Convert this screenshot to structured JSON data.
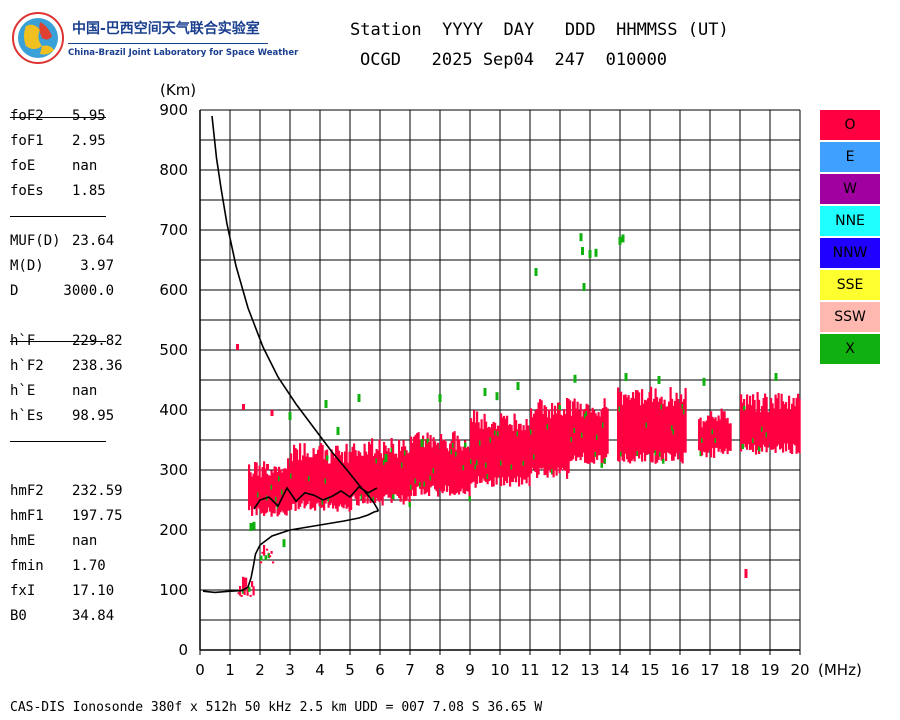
{
  "logo": {
    "cn": "中国-巴西空间天气联合实验室",
    "en": "China-Brazil Joint Laboratory for Space Weather"
  },
  "header": {
    "line1": "Station  YYYY  DAY   DDD  HHMMSS (UT)",
    "line2": "OCGD   2025 Sep04  247  010000"
  },
  "params": [
    {
      "name": "foF2",
      "value": "5.95"
    },
    {
      "name": "foF1",
      "value": "2.95"
    },
    {
      "name": "foE",
      "value": "nan"
    },
    {
      "name": "foEs",
      "value": "1.85"
    },
    {
      "name": "MUF(D)",
      "value": "23.64"
    },
    {
      "name": "M(D)",
      "value": "3.97"
    },
    {
      "name": "D",
      "value": "3000.0"
    },
    {
      "name": "h`F",
      "value": "229.82"
    },
    {
      "name": "h`F2",
      "value": "238.36"
    },
    {
      "name": "h`E",
      "value": "nan"
    },
    {
      "name": "h`Es",
      "value": "98.95"
    },
    {
      "name": "hmF2",
      "value": "232.59"
    },
    {
      "name": "hmF1",
      "value": "197.75"
    },
    {
      "name": "hmE",
      "value": "nan"
    },
    {
      "name": "fmin",
      "value": "1.70"
    },
    {
      "name": "fxI",
      "value": "17.10"
    },
    {
      "name": "B0",
      "value": "34.84"
    }
  ],
  "legend": [
    {
      "label": "O",
      "color": "#ff0040"
    },
    {
      "label": "E",
      "color": "#40a0ff"
    },
    {
      "label": "W",
      "color": "#a000a0"
    },
    {
      "label": "NNE",
      "color": "#20ffff"
    },
    {
      "label": "NNW",
      "color": "#2000ff"
    },
    {
      "label": "SSE",
      "color": "#ffff30"
    },
    {
      "label": "SSW",
      "color": "#ffb8b0"
    },
    {
      "label": "X",
      "color": "#10b010"
    }
  ],
  "footer": "CAS-DIS Ionosonde 380f x 512h 50 kHz 2.5 km UDD = 007 7.08 S 36.65 W",
  "chart_data": {
    "type": "scatter",
    "xlabel": "(MHz)",
    "ylabel": "(Km)",
    "xlim": [
      0,
      20
    ],
    "ylim": [
      0,
      900
    ],
    "xticks": [
      "0",
      "1",
      "2",
      "3",
      "4",
      "5",
      "6",
      "7",
      "8",
      "9",
      "10",
      "11",
      "12",
      "13",
      "14",
      "15",
      "16",
      "17",
      "18",
      "19",
      "20"
    ],
    "yticks": [
      "0",
      "100",
      "200",
      "300",
      "400",
      "500",
      "600",
      "700",
      "800",
      "900"
    ],
    "grid": true,
    "profile_curve": {
      "x": [
        0.4,
        0.55,
        0.7,
        0.9,
        1.2,
        1.6,
        2.1,
        2.6,
        3.2,
        3.8,
        4.4,
        4.9,
        5.3,
        5.6,
        5.8,
        5.95
      ],
      "y": [
        890,
        820,
        770,
        710,
        640,
        570,
        505,
        455,
        410,
        370,
        330,
        300,
        275,
        258,
        245,
        232
      ]
    },
    "bottomside_curve": {
      "x": [
        0.1,
        0.5,
        1.0,
        1.4,
        1.6,
        1.7,
        1.78,
        1.85,
        2.0,
        2.4,
        3.0,
        3.6,
        4.2,
        4.8,
        5.3,
        5.6,
        5.8,
        5.95
      ],
      "y": [
        98,
        96,
        98,
        99,
        105,
        120,
        140,
        160,
        175,
        190,
        200,
        205,
        210,
        215,
        220,
        225,
        230,
        232
      ]
    },
    "trace_curve": {
      "x": [
        1.8,
        2.0,
        2.3,
        2.6,
        2.9,
        3.2,
        3.5,
        3.8,
        4.1,
        4.4,
        4.7,
        5.0,
        5.3,
        5.6,
        5.9
      ],
      "y": [
        235,
        250,
        255,
        240,
        270,
        248,
        262,
        258,
        250,
        256,
        265,
        255,
        272,
        262,
        270
      ]
    },
    "o_mode_bands": [
      {
        "x1": 1.6,
        "x2": 3.0,
        "ylo": 230,
        "yhi": 320
      },
      {
        "x1": 3.0,
        "x2": 5.0,
        "ylo": 240,
        "yhi": 345
      },
      {
        "x1": 5.0,
        "x2": 7.0,
        "ylo": 250,
        "yhi": 355
      },
      {
        "x1": 7.0,
        "x2": 9.0,
        "ylo": 265,
        "yhi": 365
      },
      {
        "x1": 9.0,
        "x2": 11.0,
        "ylo": 280,
        "yhi": 400
      },
      {
        "x1": 11.0,
        "x2": 12.3,
        "ylo": 295,
        "yhi": 420
      },
      {
        "x1": 12.3,
        "x2": 13.6,
        "ylo": 320,
        "yhi": 420
      },
      {
        "x1": 13.9,
        "x2": 16.2,
        "ylo": 320,
        "yhi": 440
      },
      {
        "x1": 16.6,
        "x2": 17.7,
        "ylo": 330,
        "yhi": 405
      },
      {
        "x1": 18.0,
        "x2": 20.0,
        "ylo": 335,
        "yhi": 430
      },
      {
        "x1": 1.25,
        "x2": 1.8,
        "ylo": 100,
        "yhi": 125
      },
      {
        "x1": 2.0,
        "x2": 2.4,
        "ylo": 165,
        "yhi": 180
      }
    ],
    "o_mode_points": {
      "x": [
        1.25,
        1.45,
        1.7,
        2.25,
        2.4,
        18.2,
        18.2
      ],
      "y": [
        505,
        405,
        205,
        305,
        395,
        130,
        125
      ]
    },
    "x_mode_points": {
      "x": [
        11.2,
        12.7,
        12.75,
        13.0,
        13.2,
        12.8,
        14.0,
        14.1,
        1.8,
        1.7,
        2.8,
        4.2,
        5.3,
        9.9,
        10.6,
        12.5,
        14.2,
        15.3,
        16.8,
        19.2,
        8.0,
        9.5,
        3.0,
        4.6,
        6.2,
        7.4
      ],
      "y": [
        630,
        688,
        665,
        660,
        662,
        605,
        682,
        686,
        207,
        205,
        178,
        410,
        420,
        423,
        440,
        452,
        455,
        450,
        447,
        455,
        420,
        430,
        390,
        365,
        320,
        345
      ]
    }
  }
}
